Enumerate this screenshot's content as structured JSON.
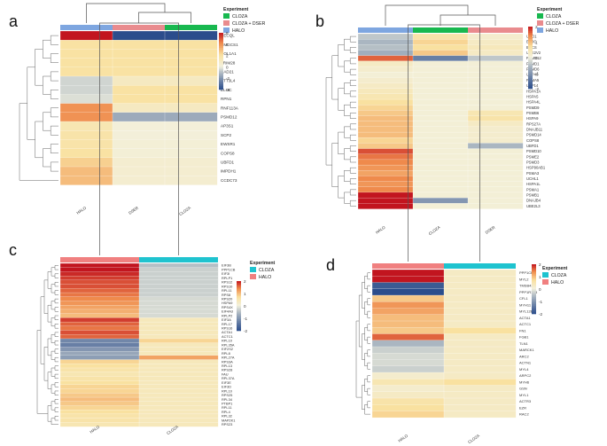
{
  "colors": {
    "low": "#2b4d8c",
    "mid": "#f2f1df",
    "high": "#c2151f",
    "halo": "#7ea6e0",
    "cloza": "#18b84f",
    "cloza_dser": "#e98b8e",
    "halo_c": "#f08080",
    "cloza_c": "#1fc3cf"
  },
  "chart_data": [
    {
      "panel": "a",
      "type": "heatmap",
      "columns": [
        "HALO",
        "DSER",
        "CLOZA"
      ],
      "column_groups": [
        "halo",
        "cloza_dser",
        "cloza"
      ],
      "rows": [
        "RECQL",
        "HMGCS1",
        "COL1A1",
        "TRIM28",
        "RAD21",
        "STT3L4",
        "ELOC",
        "RPN1",
        "RNF113A",
        "PSMD12",
        "AP3S1",
        "SCP2",
        "EWSR1",
        "COPS8",
        "UBFD1",
        "IMPDH1",
        "CCDC73"
      ],
      "values": [
        [
          6,
          -4,
          -4
        ],
        [
          2,
          2,
          2
        ],
        [
          2,
          2,
          2
        ],
        [
          2,
          2,
          2
        ],
        [
          2,
          2,
          2
        ],
        [
          -0.5,
          1,
          1
        ],
        [
          -0.5,
          2,
          2
        ],
        [
          -0.3,
          2,
          2
        ],
        [
          4,
          1,
          1
        ],
        [
          4,
          -1.5,
          -1.5
        ],
        [
          1.5,
          0.2,
          0.2
        ],
        [
          1.8,
          0.2,
          0.2
        ],
        [
          1.8,
          0.3,
          0.3
        ],
        [
          2,
          0.3,
          0.3
        ],
        [
          2.5,
          0.5,
          0.5
        ],
        [
          3,
          0.5,
          0.5
        ],
        [
          3,
          0.5,
          0.5
        ]
      ],
      "legend_title": "Experiment",
      "legend_entries": [
        "CLOZA",
        "CLOZA + DSER",
        "HALO"
      ],
      "legend_colors": [
        "cloza",
        "cloza_dser",
        "halo"
      ],
      "scale_range": [
        -4,
        6
      ],
      "scale_ticks": [
        "6",
        "4",
        "2",
        "0",
        "-2",
        "-4"
      ]
    },
    {
      "panel": "b",
      "type": "heatmap",
      "columns": [
        "HALO",
        "CLOZA",
        "DSER"
      ],
      "column_groups": [
        "halo",
        "cloza",
        "cloza_dser"
      ],
      "rows": [
        "USO1",
        "ELOC",
        "BRCS",
        "UBE2V2",
        "PSMD12",
        "PSMD1",
        "PSMD6",
        "USP40",
        "PSMA5",
        "USP14",
        "HSPA1A",
        "HSPA5",
        "HSPA4L",
        "PSMD9",
        "PSMB6",
        "HSPA9",
        "RPS27A",
        "DNAJB11",
        "PSMD14",
        "COPS8",
        "UBFD1",
        "PSMD10",
        "PSME2",
        "PSMD3",
        "HSP90AB1",
        "PSMA3",
        "UCHL1",
        "HSPA1L",
        "PSMA1",
        "PSMB1",
        "DNAJB4",
        "UBE2L3"
      ],
      "values": [
        [
          -0.4,
          0.6,
          0.2
        ],
        [
          -0.6,
          0.8,
          0.3
        ],
        [
          -0.5,
          0.7,
          0.4
        ],
        [
          -0.7,
          0.9,
          0.3
        ],
        [
          1.6,
          -1.3,
          -0.4
        ],
        [
          0.3,
          0.1,
          0.1
        ],
        [
          0.2,
          0.1,
          0.1
        ],
        [
          0.1,
          0.1,
          0.1
        ],
        [
          0.2,
          0.1,
          0.1
        ],
        [
          0.3,
          0.1,
          0.1
        ],
        [
          0.4,
          0.1,
          0.1
        ],
        [
          0.5,
          0.1,
          0.1
        ],
        [
          0.7,
          0.1,
          0.1
        ],
        [
          0.8,
          0.1,
          0.1
        ],
        [
          0.9,
          0.1,
          0.5
        ],
        [
          1.0,
          0.1,
          0.6
        ],
        [
          1.0,
          0.1,
          0.3
        ],
        [
          1.0,
          0.1,
          0.2
        ],
        [
          1.0,
          0.1,
          0.2
        ],
        [
          0.8,
          0.1,
          0.2
        ],
        [
          0.9,
          0.1,
          -0.6
        ],
        [
          1.7,
          0.1,
          0.1
        ],
        [
          1.5,
          0.1,
          0.1
        ],
        [
          1.4,
          0.1,
          0.1
        ],
        [
          1.3,
          0.1,
          0.1
        ],
        [
          1.2,
          0.1,
          0.1
        ],
        [
          1.4,
          0.1,
          0.1
        ],
        [
          1.3,
          0.1,
          0.1
        ],
        [
          1.4,
          0.1,
          0.1
        ],
        [
          2.0,
          0.1,
          0.1
        ],
        [
          2.0,
          -1.0,
          0.1
        ],
        [
          2.0,
          0.1,
          0.1
        ]
      ],
      "legend_title": "Experiment",
      "legend_entries": [
        "CLOZA",
        "CLOZA + DSER",
        "HALO"
      ],
      "legend_colors": [
        "cloza",
        "cloza_dser",
        "halo"
      ],
      "scale_range": [
        -2,
        2
      ],
      "scale_ticks": [
        "2",
        "1",
        "0",
        "-1",
        "-2"
      ]
    },
    {
      "panel": "c",
      "type": "heatmap",
      "columns": [
        "HALO",
        "CLOZA"
      ],
      "column_groups": [
        "halo_c",
        "cloza_c"
      ],
      "rows": [
        "EIF3B",
        "PPP1CB",
        "EIF3I",
        "RPLP1",
        "RPS12",
        "RPS10",
        "RPL11",
        "RPS8",
        "RPS20",
        "HSPA9",
        "RPS4X",
        "EIF4A3",
        "RPLP2",
        "EIF3A",
        "RPL17",
        "RPS16",
        "ACTA1",
        "ACTC1",
        "RPL10",
        "RPL35A",
        "EIF2S2",
        "RPL8",
        "RPL27A",
        "RPS3A",
        "RPL13",
        "RPS28",
        "FAU",
        "RPL37A",
        "EIF3E",
        "EIF3D",
        "RPL10",
        "RPS25",
        "RPL34",
        "PTBP1",
        "RPL11",
        "RPL4",
        "RPL32",
        "MAP2K1",
        "RPS23"
      ],
      "values": [
        [
          2.0,
          -0.5
        ],
        [
          2.0,
          -0.3
        ],
        [
          1.9,
          -0.3
        ],
        [
          1.8,
          -0.3
        ],
        [
          1.7,
          -0.3
        ],
        [
          1.7,
          -0.3
        ],
        [
          1.6,
          -0.3
        ],
        [
          1.5,
          -0.3
        ],
        [
          1.4,
          -0.2
        ],
        [
          1.3,
          -0.2
        ],
        [
          1.2,
          -0.2
        ],
        [
          1.1,
          -0.2
        ],
        [
          1.0,
          -0.2
        ],
        [
          1.8,
          0.4
        ],
        [
          1.6,
          0.4
        ],
        [
          1.5,
          0.4
        ],
        [
          1.7,
          0.4
        ],
        [
          1.6,
          0.4
        ],
        [
          -1.2,
          0.8
        ],
        [
          -1.3,
          0.4
        ],
        [
          -1.0,
          0.4
        ],
        [
          -0.8,
          0.4
        ],
        [
          -0.9,
          1.2
        ],
        [
          0.8,
          0.4
        ],
        [
          0.7,
          0.4
        ],
        [
          0.6,
          0.4
        ],
        [
          0.5,
          0.4
        ],
        [
          0.6,
          0.4
        ],
        [
          0.7,
          0.4
        ],
        [
          0.8,
          0.4
        ],
        [
          0.8,
          0.4
        ],
        [
          0.9,
          0.4
        ],
        [
          1.0,
          0.4
        ],
        [
          0.9,
          0.4
        ],
        [
          0.8,
          0.4
        ],
        [
          0.7,
          0.4
        ],
        [
          0.6,
          0.4
        ],
        [
          0.6,
          0.4
        ],
        [
          0.5,
          0.4
        ]
      ],
      "legend_title": "Experiment",
      "legend_entries": [
        "CLOZA",
        "HALO"
      ],
      "legend_colors": [
        "cloza_c",
        "halo_c"
      ],
      "scale_range": [
        -2,
        2
      ],
      "scale_ticks": [
        "2",
        "1",
        "0",
        "-1",
        "-2"
      ]
    },
    {
      "panel": "d",
      "type": "heatmap",
      "columns": [
        "HALO",
        "CLOZA"
      ],
      "column_groups": [
        "halo_c",
        "cloza_c"
      ],
      "rows": [
        "PPP1CB",
        "MYL2",
        "TMSB4X",
        "PPP1R12B",
        "CFL1",
        "MYH11",
        "MYL12B",
        "ACTA1",
        "ACTC1",
        "FN1",
        "FGB1",
        "TLN1",
        "MARCK1",
        "ARC2",
        "ACTN1",
        "MYL4",
        "ARPC2",
        "MYH6",
        "GSN",
        "MYL1",
        "ACTR3",
        "EZR",
        "RAC2"
      ],
      "values": [
        [
          2.0,
          0.3
        ],
        [
          2.0,
          0.3
        ],
        [
          -1.8,
          0.3
        ],
        [
          -2.0,
          0.3
        ],
        [
          0.9,
          0.3
        ],
        [
          1.3,
          0.3
        ],
        [
          1.2,
          0.3
        ],
        [
          1.0,
          0.3
        ],
        [
          1.0,
          0.3
        ],
        [
          0.9,
          0.7
        ],
        [
          1.6,
          0.3
        ],
        [
          -0.6,
          0.3
        ],
        [
          -0.3,
          0.3
        ],
        [
          -0.2,
          0.3
        ],
        [
          -0.2,
          0.3
        ],
        [
          -0.3,
          0.3
        ],
        [
          0.2,
          0.3
        ],
        [
          0.5,
          0.7
        ],
        [
          0.2,
          0.3
        ],
        [
          0.3,
          0.3
        ],
        [
          0.6,
          0.3
        ],
        [
          0.7,
          0.3
        ],
        [
          0.8,
          0.3
        ]
      ],
      "legend_title": "Experiment",
      "legend_entries": [
        "CLOZA",
        "HALO"
      ],
      "legend_colors": [
        "cloza_c",
        "halo_c"
      ],
      "scale_range": [
        -2,
        2
      ],
      "scale_ticks": [
        "2",
        "1",
        "0",
        "-1",
        "-2"
      ]
    }
  ]
}
